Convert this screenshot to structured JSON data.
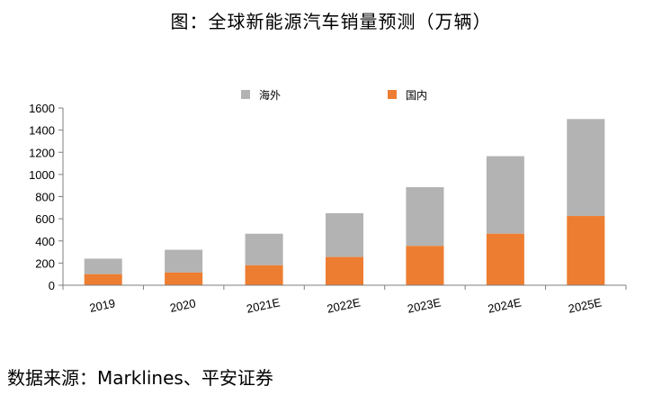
{
  "title": "图：全球新能源汽车销量预测（万辆）",
  "source": "数据来源：Marklines、平安证券",
  "chart_data": {
    "type": "bar",
    "stacked": true,
    "categories": [
      "2019",
      "2020",
      "2021E",
      "2022E",
      "2023E",
      "2024E",
      "2025E"
    ],
    "series": [
      {
        "name": "海外",
        "color": "#b3b3b3",
        "values": [
          140,
          205,
          285,
          395,
          530,
          700,
          875
        ]
      },
      {
        "name": "国内",
        "color": "#ed7d31",
        "values": [
          100,
          115,
          180,
          255,
          355,
          465,
          625
        ]
      }
    ],
    "yticks": [
      0,
      200,
      400,
      600,
      800,
      1000,
      1200,
      1400,
      1600
    ],
    "ylim": [
      0,
      1600
    ],
    "legend_position": "top",
    "grid": false
  }
}
